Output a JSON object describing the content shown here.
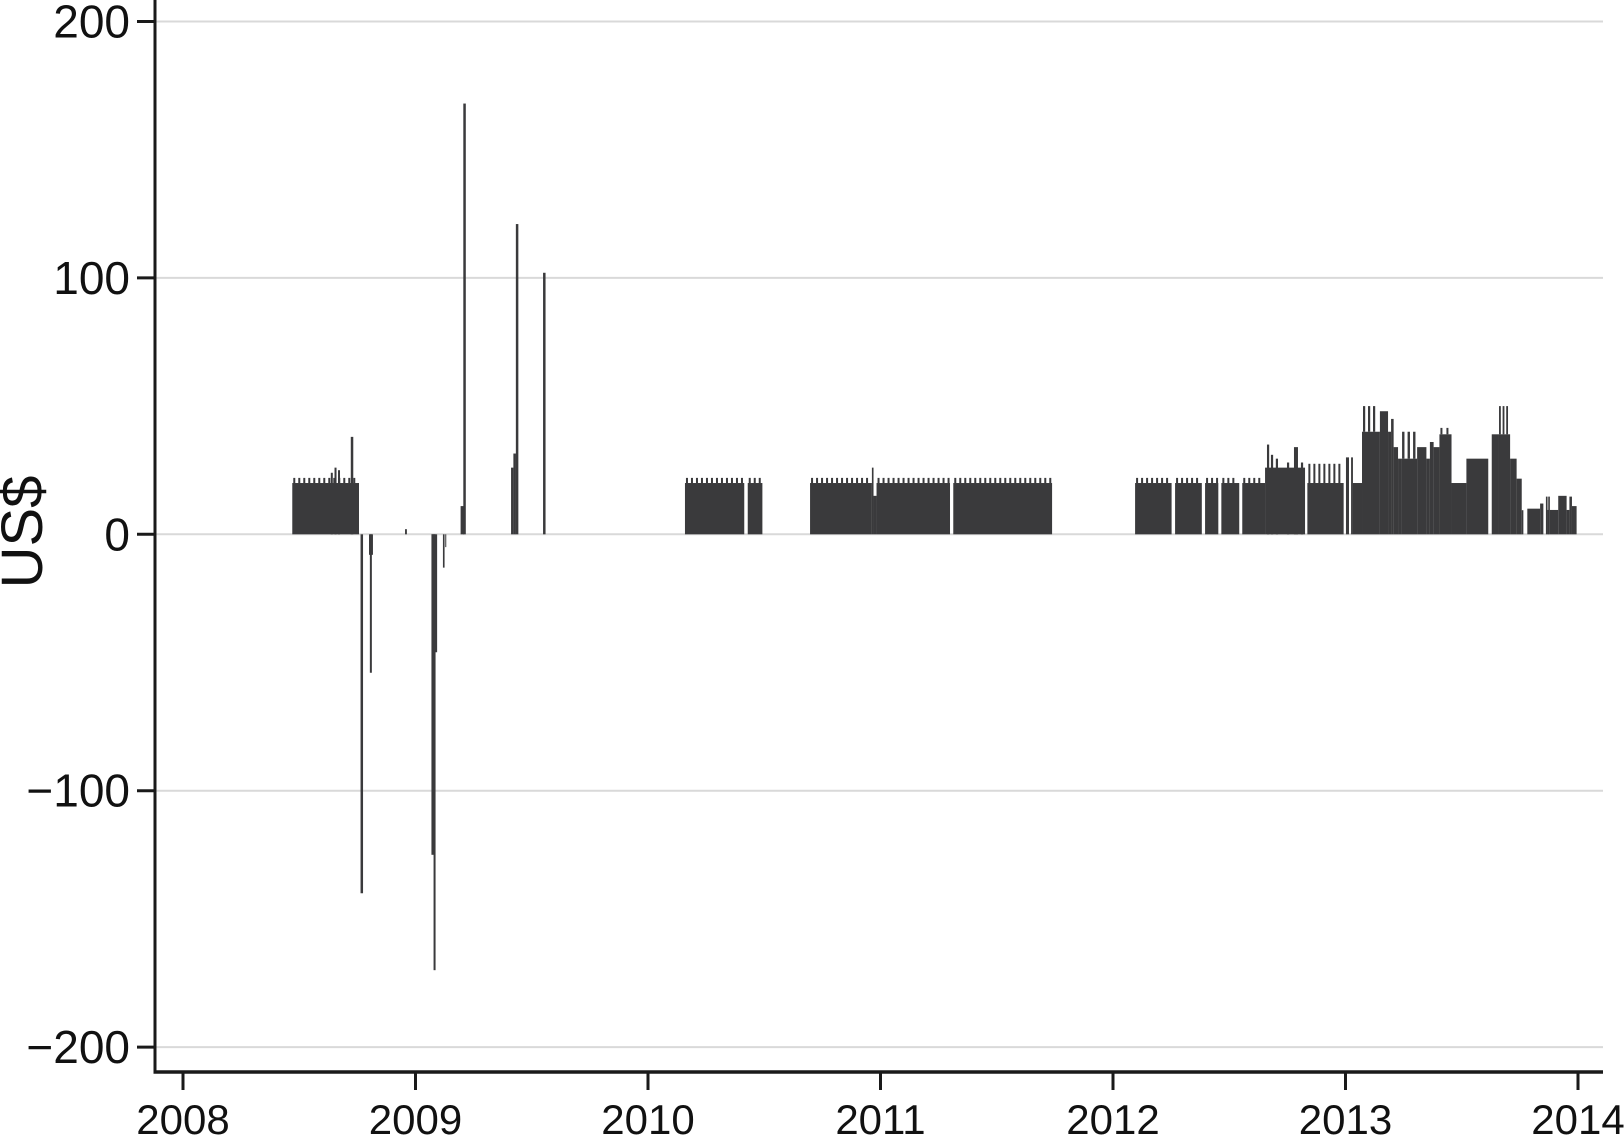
{
  "chart_data": {
    "type": "bar",
    "title": "",
    "xlabel": "",
    "ylabel": "US$",
    "legend": null,
    "grid": "horizontal-only",
    "x_tick_labels": [
      "2008",
      "2009",
      "2010",
      "2011",
      "2012",
      "2013",
      "2014"
    ],
    "x_tick_years": [
      2008,
      2009,
      2010,
      2011,
      2012,
      2013,
      2014
    ],
    "y_tick_labels": [
      "200",
      "100",
      "0",
      "−100",
      "−200"
    ],
    "y_tick_values": [
      200,
      100,
      0,
      -100,
      -200
    ],
    "x_range_years": [
      2007.88,
      2014.11
    ],
    "y_range": [
      -210,
      208
    ],
    "bar_color": "#3a3a3c",
    "axis_color": "#1a1a1a",
    "grid_color": "#d9d9d9",
    "background_color": "#ffffff",
    "description": "Daily US$ price bars; dense blocks near +20 with large isolated positive and negative spikes in 2008-2009 and elevated stepped blocks (+25 to +50) through 2013",
    "bars": [
      {
        "x0": 2008.47,
        "x1": 2008.757,
        "v": 20,
        "teeth": {
          "v": 22,
          "period": 5,
          "width": 2
        }
      },
      {
        "x0": 2008.8,
        "x1": 2008.817,
        "v": -8
      },
      {
        "x0": 2008.955,
        "x1": 2008.963,
        "v": 2
      },
      {
        "x0": 2009.069,
        "x1": 2009.093,
        "v": -46
      },
      {
        "x0": 2009.118,
        "x1": 2009.125,
        "v": -13
      },
      {
        "x0": 2009.128,
        "x1": 2009.132,
        "v": -5
      },
      {
        "x0": 2009.194,
        "x1": 2009.209,
        "v": 11
      },
      {
        "x0": 2009.411,
        "x1": 2009.421,
        "v": 26
      },
      {
        "x0": 2009.421,
        "x1": 2009.432,
        "v": 31.5
      },
      {
        "x0": 2010.159,
        "x1": 2010.414,
        "v": 20,
        "teeth": {
          "v": 22,
          "period": 5,
          "width": 2
        }
      },
      {
        "x0": 2010.429,
        "x1": 2010.492,
        "v": 20,
        "teeth": {
          "v": 22,
          "period": 5,
          "width": 2
        }
      },
      {
        "x0": 2010.697,
        "x1": 2010.963,
        "v": 20,
        "teeth": {
          "v": 22,
          "period": 5,
          "width": 2
        }
      },
      {
        "x0": 2010.963,
        "x1": 2010.97,
        "v": 26
      },
      {
        "x0": 2010.97,
        "x1": 2010.983,
        "v": 15
      },
      {
        "x0": 2010.983,
        "x1": 2011.299,
        "v": 20,
        "teeth": {
          "v": 22,
          "period": 5,
          "width": 2
        }
      },
      {
        "x0": 2011.313,
        "x1": 2011.738,
        "v": 20,
        "teeth": {
          "v": 22,
          "period": 5,
          "width": 2
        }
      },
      {
        "x0": 2012.095,
        "x1": 2012.252,
        "v": 20,
        "teeth": {
          "v": 22,
          "period": 5,
          "width": 2
        }
      },
      {
        "x0": 2012.267,
        "x1": 2012.382,
        "v": 20,
        "teeth": {
          "v": 22,
          "period": 5,
          "width": 2
        }
      },
      {
        "x0": 2012.396,
        "x1": 2012.453,
        "v": 20,
        "teeth": {
          "v": 22,
          "period": 5,
          "width": 2
        }
      },
      {
        "x0": 2012.466,
        "x1": 2012.543,
        "v": 20,
        "teeth": {
          "v": 22,
          "period": 5,
          "width": 2
        }
      },
      {
        "x0": 2012.556,
        "x1": 2012.654,
        "v": 20,
        "teeth": {
          "v": 22,
          "period": 5,
          "width": 2
        }
      },
      {
        "x0": 2012.654,
        "x1": 2012.826,
        "v": 26
      },
      {
        "x0": 2012.836,
        "x1": 2012.992,
        "v": 20,
        "teeth": {
          "v": 27.5,
          "period": 5,
          "width": 2
        }
      },
      {
        "x0": 2013.002,
        "x1": 2013.015,
        "v": 30
      },
      {
        "x0": 2013.024,
        "x1": 2013.032,
        "v": 30
      },
      {
        "x0": 2013.032,
        "x1": 2013.071,
        "v": 20
      },
      {
        "x0": 2013.071,
        "x1": 2013.148,
        "v": 40,
        "teeth": {
          "v": 50,
          "period": 5,
          "width": 2.2
        }
      },
      {
        "x0": 2013.148,
        "x1": 2013.183,
        "v": 48
      },
      {
        "x0": 2013.183,
        "x1": 2013.196,
        "v": 40
      },
      {
        "x0": 2013.196,
        "x1": 2013.207,
        "v": 45
      },
      {
        "x0": 2013.207,
        "x1": 2013.226,
        "v": 34
      },
      {
        "x0": 2013.226,
        "x1": 2013.239,
        "v": 29.5
      },
      {
        "x0": 2013.239,
        "x1": 2013.308,
        "v": 29.5,
        "teeth": {
          "v": 40,
          "period": 5.5,
          "width": 2.4
        }
      },
      {
        "x0": 2013.308,
        "x1": 2013.348,
        "v": 34
      },
      {
        "x0": 2013.348,
        "x1": 2013.363,
        "v": 29.5
      },
      {
        "x0": 2013.363,
        "x1": 2013.379,
        "v": 36
      },
      {
        "x0": 2013.379,
        "x1": 2013.404,
        "v": 34
      },
      {
        "x0": 2013.404,
        "x1": 2013.456,
        "v": 39,
        "teeth": {
          "v": 41.5,
          "period": 6,
          "width": 2
        }
      },
      {
        "x0": 2013.456,
        "x1": 2013.52,
        "v": 20
      },
      {
        "x0": 2013.52,
        "x1": 2013.614,
        "v": 29.5
      },
      {
        "x0": 2013.629,
        "x1": 2013.656,
        "v": 39
      },
      {
        "x0": 2013.656,
        "x1": 2013.708,
        "v": 39,
        "teeth": {
          "v": 50,
          "period": 3.6,
          "width": 1.8
        }
      },
      {
        "x0": 2013.708,
        "x1": 2013.736,
        "v": 29.5
      },
      {
        "x0": 2013.736,
        "x1": 2013.758,
        "v": 21.7
      },
      {
        "x0": 2013.758,
        "x1": 2013.765,
        "v": 9.4
      },
      {
        "x0": 2013.782,
        "x1": 2013.837,
        "v": 10
      },
      {
        "x0": 2013.837,
        "x1": 2013.851,
        "v": 12
      },
      {
        "x0": 2013.862,
        "x1": 2013.869,
        "v": 14.7
      },
      {
        "x0": 2013.869,
        "x1": 2013.872,
        "v": 9.5
      },
      {
        "x0": 2013.872,
        "x1": 2013.879,
        "v": 14.7
      },
      {
        "x0": 2013.879,
        "x1": 2013.915,
        "v": 9.5
      },
      {
        "x0": 2013.915,
        "x1": 2013.951,
        "v": 15
      },
      {
        "x0": 2013.951,
        "x1": 2013.963,
        "v": 9.5
      },
      {
        "x0": 2013.963,
        "x1": 2013.974,
        "v": 14.7
      },
      {
        "x0": 2013.974,
        "x1": 2013.994,
        "v": 11
      }
    ],
    "spikes": [
      {
        "x": 2008.64,
        "v": 24,
        "w": 2
      },
      {
        "x": 2008.656,
        "v": 26,
        "w": 2
      },
      {
        "x": 2008.671,
        "v": 25,
        "w": 2
      },
      {
        "x": 2008.727,
        "v": 38,
        "w": 2.5
      },
      {
        "x": 2008.769,
        "v": -140,
        "w": 2.5
      },
      {
        "x": 2008.808,
        "v": -54,
        "w": 2
      },
      {
        "x": 2009.075,
        "v": -125,
        "w": 3
      },
      {
        "x": 2009.082,
        "v": -170,
        "w": 2
      },
      {
        "x": 2009.211,
        "v": 168,
        "w": 2.5
      },
      {
        "x": 2009.437,
        "v": 121,
        "w": 2.5
      },
      {
        "x": 2009.554,
        "v": 102,
        "w": 2.5
      },
      {
        "x": 2012.667,
        "v": 35,
        "w": 2.2
      },
      {
        "x": 2012.684,
        "v": 31,
        "w": 2.2
      },
      {
        "x": 2012.705,
        "v": 29.5,
        "w": 2.2
      },
      {
        "x": 2012.753,
        "v": 28,
        "w": 2.2
      },
      {
        "x": 2012.787,
        "v": 34,
        "w": 4
      },
      {
        "x": 2012.813,
        "v": 28,
        "w": 2.2
      }
    ]
  }
}
